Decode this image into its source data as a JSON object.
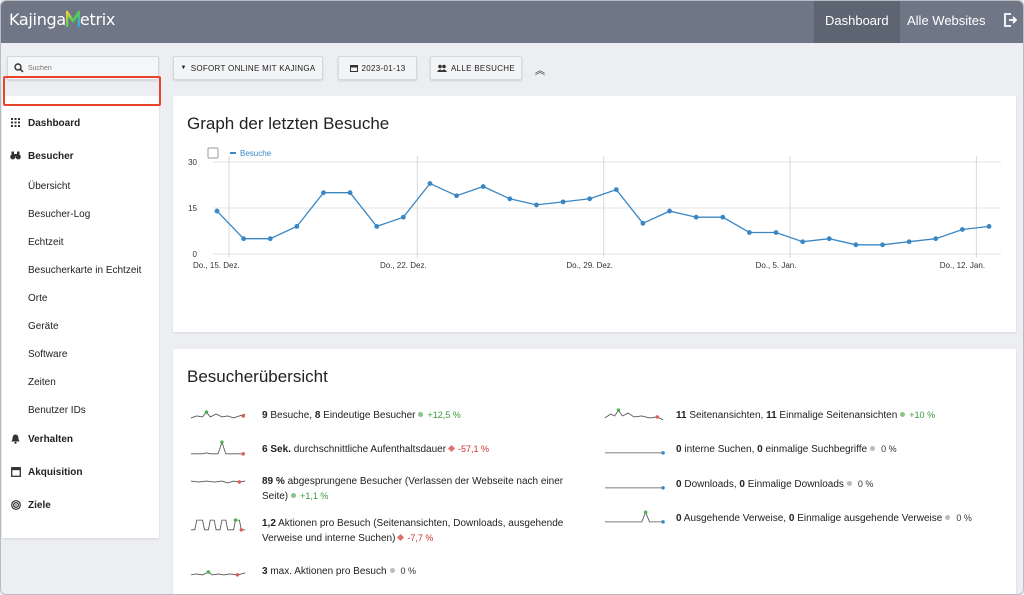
{
  "topbar": {
    "logo_text": "Kajinga",
    "logo_suffix": "etrix",
    "nav": [
      {
        "label": "Dashboard",
        "active": true
      },
      {
        "label": "Alle Websites",
        "active": false
      }
    ]
  },
  "toolbar": {
    "search_placeholder": "Suchen",
    "segment_label": "SOFORT ONLINE MIT KAJINGA",
    "date_label": "2023-01-13",
    "visits_filter_label": "ALLE BESUCHE"
  },
  "sidebar": {
    "items": [
      {
        "label": "Dashboard",
        "head": true,
        "icon": "grid-icon"
      },
      {
        "label": "Besucher",
        "head": true,
        "icon": "binoculars-icon"
      },
      {
        "label": "Übersicht",
        "head": false,
        "selected": true
      },
      {
        "label": "Besucher-Log",
        "head": false
      },
      {
        "label": "Echtzeit",
        "head": false
      },
      {
        "label": "Besucherkarte in Echtzeit",
        "head": false
      },
      {
        "label": "Orte",
        "head": false
      },
      {
        "label": "Geräte",
        "head": false
      },
      {
        "label": "Software",
        "head": false
      },
      {
        "label": "Zeiten",
        "head": false
      },
      {
        "label": "Benutzer IDs",
        "head": false
      },
      {
        "label": "Verhalten",
        "head": true,
        "icon": "bell-icon"
      },
      {
        "label": "Akquisition",
        "head": true,
        "icon": "calendar-icon"
      },
      {
        "label": "Ziele",
        "head": true,
        "icon": "target-icon"
      }
    ]
  },
  "graph_card": {
    "title": "Graph der letzten Besuche"
  },
  "chart_data": {
    "type": "line",
    "title": "Graph der letzten Besuche",
    "series": [
      {
        "name": "Besuche",
        "values": [
          14,
          5,
          5,
          9,
          20,
          20,
          9,
          12,
          23,
          19,
          22,
          18,
          16,
          17,
          18,
          21,
          10,
          14,
          12,
          12,
          7,
          7,
          4,
          5,
          3,
          3,
          4,
          5,
          8,
          9
        ]
      }
    ],
    "x_tick_labels": [
      "Do., 15. Dez.",
      "Do., 22. Dez.",
      "Do., 29. Dez.",
      "Do., 5. Jan.",
      "Do., 12. Jan."
    ],
    "y_tick_labels": [
      "0",
      "15",
      "30"
    ],
    "ylim": [
      0,
      30
    ],
    "legend": "top-left",
    "grid": true,
    "color": "#3a87c4"
  },
  "overview_card": {
    "title": "Besucherübersicht",
    "left": [
      {
        "parts": [
          [
            "b",
            "9"
          ],
          [
            "t",
            " Besuche, "
          ],
          [
            "b",
            "8"
          ],
          [
            "t",
            " Eindeutige Besucher"
          ]
        ],
        "change": "+12,5 %",
        "trend": "pos"
      },
      {
        "parts": [
          [
            "b",
            "6 Sek."
          ],
          [
            "t",
            " durchschnittliche Aufenthaltsdauer"
          ]
        ],
        "change": "-57,1 %",
        "trend": "neg"
      },
      {
        "parts": [
          [
            "b",
            "89 %"
          ],
          [
            "t",
            " abgesprungene Besucher (Verlassen der Webseite nach einer Seite)"
          ]
        ],
        "change": "+1,1 %",
        "trend": "pos"
      },
      {
        "parts": [
          [
            "b",
            "1,2"
          ],
          [
            "t",
            " Aktionen pro Besuch (Seitenansichten, Downloads, ausgehende Verweise und interne Suchen)"
          ]
        ],
        "change": "-7,7 %",
        "trend": "neg"
      },
      {
        "parts": [
          [
            "b",
            "3"
          ],
          [
            "t",
            " max. Aktionen pro Besuch"
          ]
        ],
        "change": "0 %",
        "trend": "neu"
      }
    ],
    "right": [
      {
        "parts": [
          [
            "b",
            "11"
          ],
          [
            "t",
            " Seitenansichten, "
          ],
          [
            "b",
            "11"
          ],
          [
            "t",
            " Einmalige Seitenansichten"
          ]
        ],
        "change": "+10 %",
        "trend": "pos"
      },
      {
        "parts": [
          [
            "b",
            "0"
          ],
          [
            "t",
            " interne Suchen, "
          ],
          [
            "b",
            "0"
          ],
          [
            "t",
            " einmalige Suchbegriffe"
          ]
        ],
        "change": "0 %",
        "trend": "neu"
      },
      {
        "parts": [
          [
            "b",
            "0"
          ],
          [
            "t",
            " Downloads, "
          ],
          [
            "b",
            "0"
          ],
          [
            "t",
            " Einmalige Downloads"
          ]
        ],
        "change": "0 %",
        "trend": "neu"
      },
      {
        "parts": [
          [
            "b",
            "0"
          ],
          [
            "t",
            " Ausgehende Verweise, "
          ],
          [
            "b",
            "0"
          ],
          [
            "t",
            " Einmalige ausgehende Verweise"
          ]
        ],
        "change": "0 %",
        "trend": "neu"
      }
    ]
  }
}
